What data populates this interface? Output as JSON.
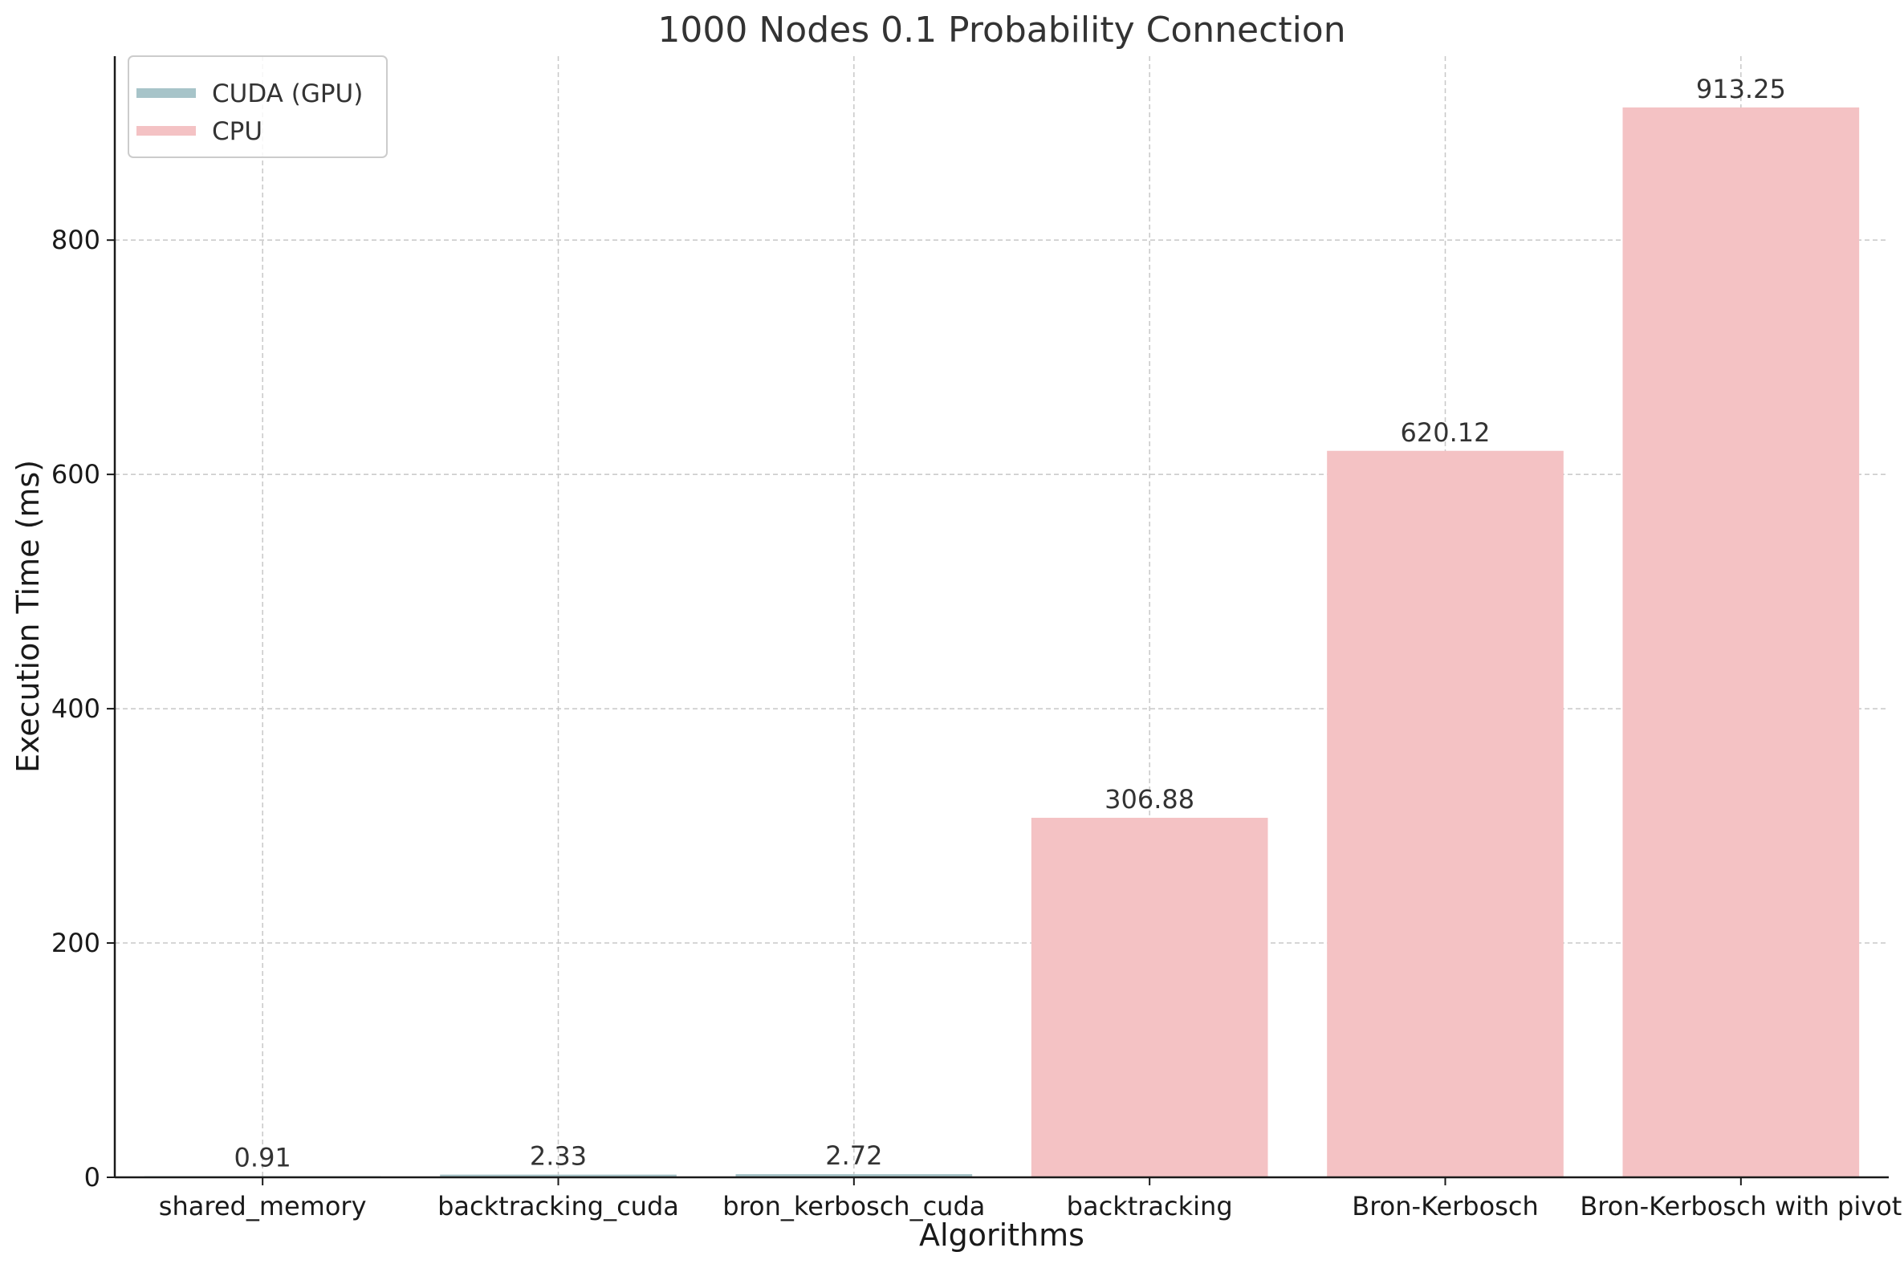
{
  "chart_data": {
    "type": "bar",
    "title": "1000 Nodes 0.1 Probability Connection",
    "xlabel": "Algorithms",
    "ylabel": "Execution Time (ms)",
    "ylim": [
      0,
      957
    ],
    "yticks": [
      0,
      200,
      400,
      600,
      800
    ],
    "grid": true,
    "legend_position": "top-left",
    "categories": [
      "shared_memory",
      "backtracking_cuda",
      "bron_kerbosch_cuda",
      "backtracking",
      "Bron-Kerbosch",
      "Bron-Kerbosch with pivot"
    ],
    "values": [
      0.91,
      2.33,
      2.72,
      306.88,
      620.12,
      913.25
    ],
    "value_labels": [
      "0.91",
      "2.33",
      "2.72",
      "306.88",
      "620.12",
      "913.25"
    ],
    "bar_group": [
      "gpu",
      "gpu",
      "gpu",
      "cpu",
      "cpu",
      "cpu"
    ],
    "series": [
      {
        "key": "gpu",
        "name": "CUDA (GPU)",
        "color": "#a7c4c9"
      },
      {
        "key": "cpu",
        "name": "CPU",
        "color": "#f4c2c4"
      }
    ]
  }
}
